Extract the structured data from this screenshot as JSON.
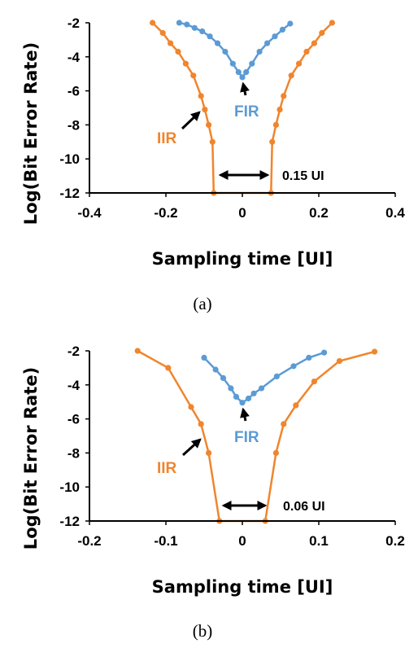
{
  "colors": {
    "iir": "#f0852d",
    "fir": "#5b9bd5",
    "axis": "#000000"
  },
  "chart_data": [
    {
      "type": "line",
      "caption": "(a)",
      "xlabel": "Sampling time [UI]",
      "ylabel": "Log(Bit Error Rate)",
      "xlim": [
        -0.4,
        0.4
      ],
      "ylim": [
        -12,
        -2
      ],
      "xticks": [
        -0.4,
        -0.2,
        0,
        0.2,
        0.4
      ],
      "xtick_labels": [
        "-0.4",
        "-0.2",
        "0",
        "0.2",
        "0.4"
      ],
      "yticks": [
        -2,
        -4,
        -6,
        -8,
        -10,
        -12
      ],
      "ytick_labels": [
        "-2",
        "-4",
        "-6",
        "-8",
        "-10",
        "-12"
      ],
      "grid": false,
      "series": [
        {
          "name": "IIR",
          "color": "#f0852d",
          "x": [
            -0.235,
            -0.208,
            -0.188,
            -0.168,
            -0.148,
            -0.128,
            -0.108,
            -0.098,
            -0.088,
            -0.078,
            -0.075,
            0.075,
            0.078,
            0.088,
            0.098,
            0.108,
            0.128,
            0.148,
            0.168,
            0.188,
            0.208,
            0.235
          ],
          "y": [
            -2.0,
            -2.6,
            -3.2,
            -3.7,
            -4.4,
            -5.1,
            -6.3,
            -7.1,
            -8.0,
            -9.0,
            -12.0,
            -12.0,
            -9.0,
            -8.0,
            -7.1,
            -6.3,
            -5.1,
            -4.4,
            -3.7,
            -3.2,
            -2.6,
            -2.0
          ]
        },
        {
          "name": "FIR",
          "color": "#5b9bd5",
          "x": [
            -0.165,
            -0.145,
            -0.125,
            -0.105,
            -0.085,
            -0.065,
            -0.045,
            -0.025,
            -0.01,
            0,
            0.01,
            0.025,
            0.045,
            0.065,
            0.085,
            0.105,
            0.125
          ],
          "y": [
            -2.0,
            -2.1,
            -2.3,
            -2.5,
            -2.8,
            -3.2,
            -3.7,
            -4.4,
            -4.9,
            -5.2,
            -4.9,
            -4.4,
            -3.7,
            -3.2,
            -2.8,
            -2.4,
            -2.05
          ]
        }
      ],
      "annotations": {
        "iir_label": "IIR",
        "fir_label": "FIR",
        "window_label": "0.15 UI",
        "window": [
          -0.075,
          0.075
        ]
      }
    },
    {
      "type": "line",
      "caption": "(b)",
      "xlabel": "Sampling time [UI]",
      "ylabel": "Log(Bit Error Rate)",
      "xlim": [
        -0.2,
        0.2
      ],
      "ylim": [
        -12,
        -2
      ],
      "xticks": [
        -0.2,
        -0.1,
        0,
        0.1,
        0.2
      ],
      "xtick_labels": [
        "-0.2",
        "-0.1",
        "0",
        "0.1",
        "0.2"
      ],
      "yticks": [
        -2,
        -4,
        -6,
        -8,
        -10,
        -12
      ],
      "ytick_labels": [
        "-2",
        "-4",
        "-6",
        "-8",
        "-10",
        "-12"
      ],
      "grid": false,
      "series": [
        {
          "name": "IIR",
          "color": "#f0852d",
          "x": [
            -0.137,
            -0.097,
            -0.067,
            -0.054,
            -0.044,
            -0.03,
            0.03,
            0.044,
            0.054,
            0.07,
            0.094,
            0.127,
            0.173
          ],
          "y": [
            -2.0,
            -3.0,
            -5.3,
            -6.3,
            -8.0,
            -12.0,
            -12.0,
            -8.0,
            -6.3,
            -5.2,
            -3.8,
            -2.6,
            -2.05
          ]
        },
        {
          "name": "FIR",
          "color": "#5b9bd5",
          "x": [
            -0.05,
            -0.035,
            -0.025,
            -0.015,
            -0.008,
            0,
            0.008,
            0.015,
            0.025,
            0.045,
            0.067,
            0.087,
            0.107
          ],
          "y": [
            -2.4,
            -3.1,
            -3.6,
            -4.2,
            -4.7,
            -5.05,
            -4.8,
            -4.5,
            -4.2,
            -3.5,
            -2.9,
            -2.4,
            -2.1
          ]
        }
      ],
      "annotations": {
        "iir_label": "IIR",
        "fir_label": "FIR",
        "window_label": "0.06 UI",
        "window": [
          -0.03,
          0.03
        ]
      }
    }
  ]
}
